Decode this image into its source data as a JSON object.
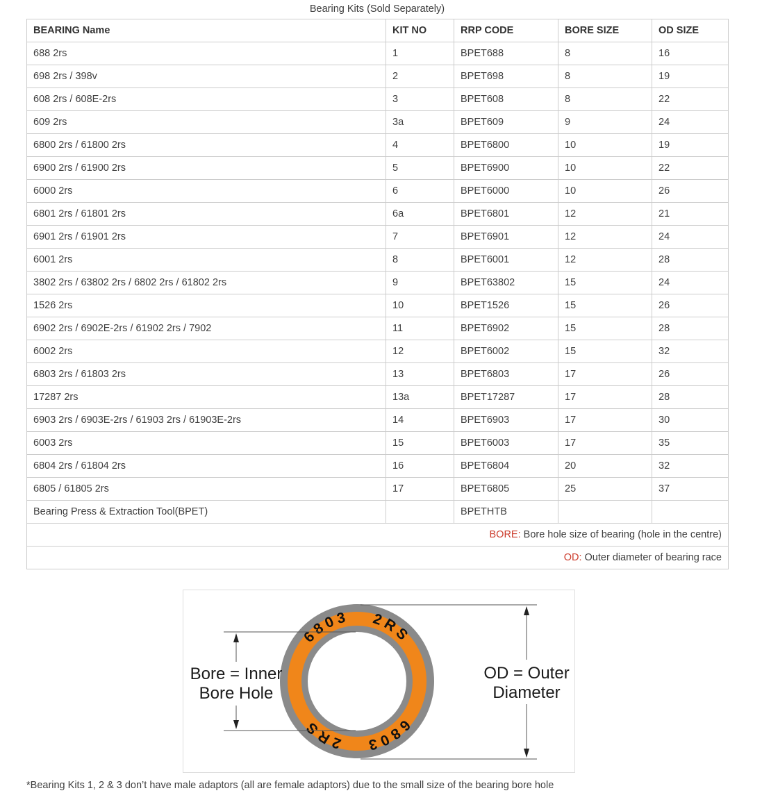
{
  "title": "Bearing Kits (Sold Separately)",
  "table": {
    "columns": [
      "BEARING Name",
      "KIT NO",
      "RRP CODE",
      "BORE SIZE",
      "OD SIZE"
    ],
    "rows": [
      [
        "688 2rs",
        "1",
        "BPET688",
        "8",
        "16"
      ],
      [
        "698 2rs / 398v",
        "2",
        "BPET698",
        "8",
        "19"
      ],
      [
        "608 2rs / 608E-2rs",
        "3",
        "BPET608",
        "8",
        "22"
      ],
      [
        "609 2rs",
        "3a",
        "BPET609",
        "9",
        "24"
      ],
      [
        "6800 2rs / 61800 2rs",
        "4",
        "BPET6800",
        "10",
        "19"
      ],
      [
        "6900 2rs / 61900 2rs",
        "5",
        "BPET6900",
        "10",
        "22"
      ],
      [
        "6000 2rs",
        "6",
        "BPET6000",
        "10",
        "26"
      ],
      [
        "6801 2rs / 61801 2rs",
        "6a",
        "BPET6801",
        "12",
        "21"
      ],
      [
        "6901 2rs / 61901 2rs",
        "7",
        "BPET6901",
        "12",
        "24"
      ],
      [
        "6001 2rs",
        "8",
        "BPET6001",
        "12",
        "28"
      ],
      [
        "3802 2rs / 63802 2rs / 6802 2rs / 61802 2rs",
        "9",
        "BPET63802",
        "15",
        "24"
      ],
      [
        "1526 2rs",
        "10",
        "BPET1526",
        "15",
        "26"
      ],
      [
        "6902 2rs / 6902E-2rs / 61902 2rs / 7902",
        "11",
        "BPET6902",
        "15",
        "28"
      ],
      [
        "6002 2rs",
        "12",
        "BPET6002",
        "15",
        "32"
      ],
      [
        "6803 2rs / 61803 2rs",
        "13",
        "BPET6803",
        "17",
        "26"
      ],
      [
        "17287 2rs",
        "13a",
        "BPET17287",
        "17",
        "28"
      ],
      [
        "6903 2rs / 6903E-2rs / 61903 2rs / 61903E-2rs",
        "14",
        "BPET6903",
        "17",
        "30"
      ],
      [
        "6003 2rs",
        "15",
        "BPET6003",
        "17",
        "35"
      ],
      [
        "6804 2rs / 61804 2rs",
        "16",
        "BPET6804",
        "20",
        "32"
      ],
      [
        "6805 / 61805 2rs",
        "17",
        "BPET6805",
        "25",
        "37"
      ],
      [
        "Bearing Press & Extraction Tool(BPET)",
        "",
        "BPETHTB",
        "",
        ""
      ]
    ],
    "notes": {
      "bore_label": "BORE:",
      "bore_text": " Bore hole size of bearing (hole in the centre)",
      "od_label": "OD:",
      "od_text": " Outer diameter of bearing race"
    }
  },
  "diagram": {
    "ring_text": "6803 2RS",
    "bore_label_line1": "Bore = Inner",
    "bore_label_line2": "Bore Hole",
    "od_label_line1": "OD = Outer",
    "od_label_line2": "Diameter",
    "ring_color": "#f0861a",
    "rim_color": "#8a8a8a"
  },
  "footnote": "*Bearing Kits 1, 2 & 3 don’t have male adaptors (all are female adaptors) due to the small size of the bearing bore hole",
  "colors": {
    "accent_red": "#cc3b2b",
    "text": "#3f3f3f",
    "border": "#cccccc"
  }
}
